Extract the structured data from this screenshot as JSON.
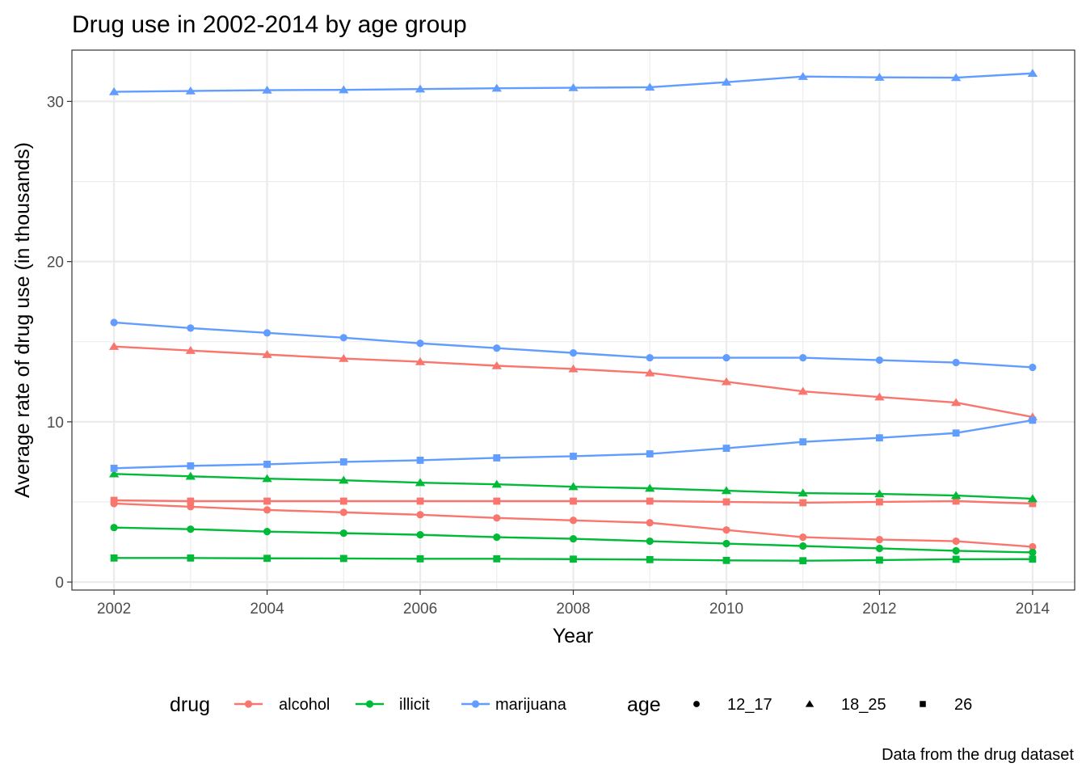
{
  "chart_data": {
    "type": "line",
    "title": "Drug use in 2002-2014 by age group",
    "xlabel": "Year",
    "ylabel": "Average rate of drug use (in thousands)",
    "caption": "Data from the drug dataset",
    "xlim": [
      2001.45,
      2014.55
    ],
    "ylim": [
      -0.5,
      33.2
    ],
    "x_ticks": [
      2002,
      2004,
      2006,
      2008,
      2010,
      2012,
      2014
    ],
    "y_ticks": [
      0,
      10,
      20,
      30
    ],
    "grid": true,
    "legend_position": "bottom",
    "legend": {
      "drug_title": "drug",
      "age_title": "age",
      "drug_items": [
        {
          "label": "alcohol",
          "color": "#F8766D"
        },
        {
          "label": "illicit",
          "color": "#00BA38"
        },
        {
          "label": "marijuana",
          "color": "#619CFF"
        }
      ],
      "age_items": [
        {
          "label": "12_17",
          "shape": "circle"
        },
        {
          "label": "18_25",
          "shape": "triangle"
        },
        {
          "label": "26",
          "shape": "square"
        }
      ]
    },
    "x": [
      2002,
      2003,
      2004,
      2005,
      2006,
      2007,
      2008,
      2009,
      2010,
      2011,
      2012,
      2013,
      2014
    ],
    "series": [
      {
        "drug": "alcohol",
        "age": "12_17",
        "color": "#F8766D",
        "shape": "circle",
        "values": [
          4.9,
          4.7,
          4.5,
          4.35,
          4.2,
          4.0,
          3.85,
          3.7,
          3.25,
          2.8,
          2.65,
          2.55,
          2.2
        ]
      },
      {
        "drug": "alcohol",
        "age": "18_25",
        "color": "#F8766D",
        "shape": "triangle",
        "values": [
          14.7,
          14.45,
          14.2,
          13.95,
          13.75,
          13.5,
          13.3,
          13.05,
          12.5,
          11.9,
          11.55,
          11.2,
          10.3
        ]
      },
      {
        "drug": "alcohol",
        "age": "26",
        "color": "#F8766D",
        "shape": "square",
        "values": [
          5.1,
          5.05,
          5.05,
          5.05,
          5.05,
          5.05,
          5.05,
          5.05,
          5.0,
          4.95,
          5.0,
          5.05,
          4.9
        ]
      },
      {
        "drug": "illicit",
        "age": "12_17",
        "color": "#00BA38",
        "shape": "circle",
        "values": [
          3.4,
          3.3,
          3.15,
          3.05,
          2.95,
          2.8,
          2.7,
          2.55,
          2.4,
          2.25,
          2.1,
          1.95,
          1.85
        ]
      },
      {
        "drug": "illicit",
        "age": "18_25",
        "color": "#00BA38",
        "shape": "triangle",
        "values": [
          6.75,
          6.6,
          6.45,
          6.35,
          6.2,
          6.1,
          5.95,
          5.85,
          5.7,
          5.55,
          5.5,
          5.4,
          5.2
        ]
      },
      {
        "drug": "illicit",
        "age": "26",
        "color": "#00BA38",
        "shape": "square",
        "values": [
          1.5,
          1.5,
          1.48,
          1.47,
          1.45,
          1.45,
          1.43,
          1.4,
          1.35,
          1.33,
          1.37,
          1.42,
          1.43
        ]
      },
      {
        "drug": "marijuana",
        "age": "12_17",
        "color": "#619CFF",
        "shape": "circle",
        "values": [
          16.2,
          15.85,
          15.55,
          15.25,
          14.9,
          14.6,
          14.3,
          14.0,
          14.0,
          14.0,
          13.85,
          13.7,
          13.4
        ]
      },
      {
        "drug": "marijuana",
        "age": "18_25",
        "color": "#619CFF",
        "shape": "triangle",
        "values": [
          30.6,
          30.65,
          30.7,
          30.72,
          30.77,
          30.82,
          30.85,
          30.88,
          31.2,
          31.55,
          31.5,
          31.48,
          31.75
        ]
      },
      {
        "drug": "marijuana",
        "age": "26",
        "color": "#619CFF",
        "shape": "square",
        "values": [
          7.1,
          7.25,
          7.35,
          7.5,
          7.6,
          7.75,
          7.85,
          8.0,
          8.35,
          8.75,
          9.0,
          9.3,
          10.1
        ]
      }
    ]
  }
}
